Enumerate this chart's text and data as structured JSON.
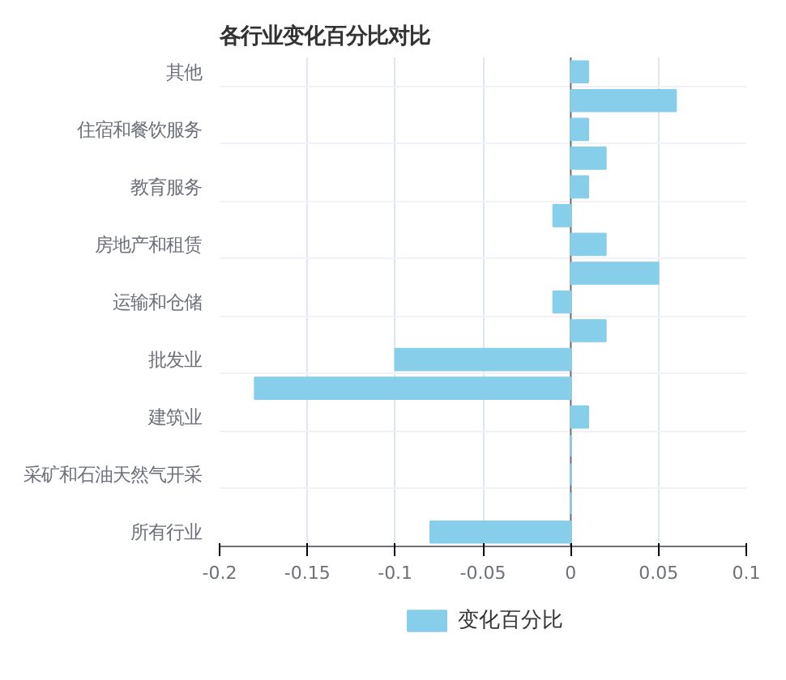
{
  "chart_data": {
    "type": "bar",
    "orientation": "horizontal",
    "title": "各行业变化百分比对比",
    "categories": [
      "其他",
      null,
      "住宿和餐饮服务",
      null,
      "教育服务",
      null,
      "房地产和租赁",
      null,
      "运输和仓储",
      null,
      "批发业",
      null,
      "建筑业",
      null,
      "采矿和石油天然气开采",
      null,
      "所有行业"
    ],
    "series": [
      {
        "name": "变化百分比",
        "color": "#87ceeb",
        "values": [
          0.01,
          0.06,
          0.01,
          0.02,
          0.01,
          -0.01,
          0.02,
          0.05,
          -0.01,
          0.02,
          -0.1,
          -0.18,
          0.01,
          0,
          0,
          0,
          -0.08
        ]
      }
    ],
    "xlim": [
      -0.2,
      0.1
    ],
    "xticks": [
      -0.2,
      -0.15,
      -0.1,
      -0.05,
      0,
      0.05,
      0.1
    ],
    "grid": true,
    "legend": "bottom"
  }
}
